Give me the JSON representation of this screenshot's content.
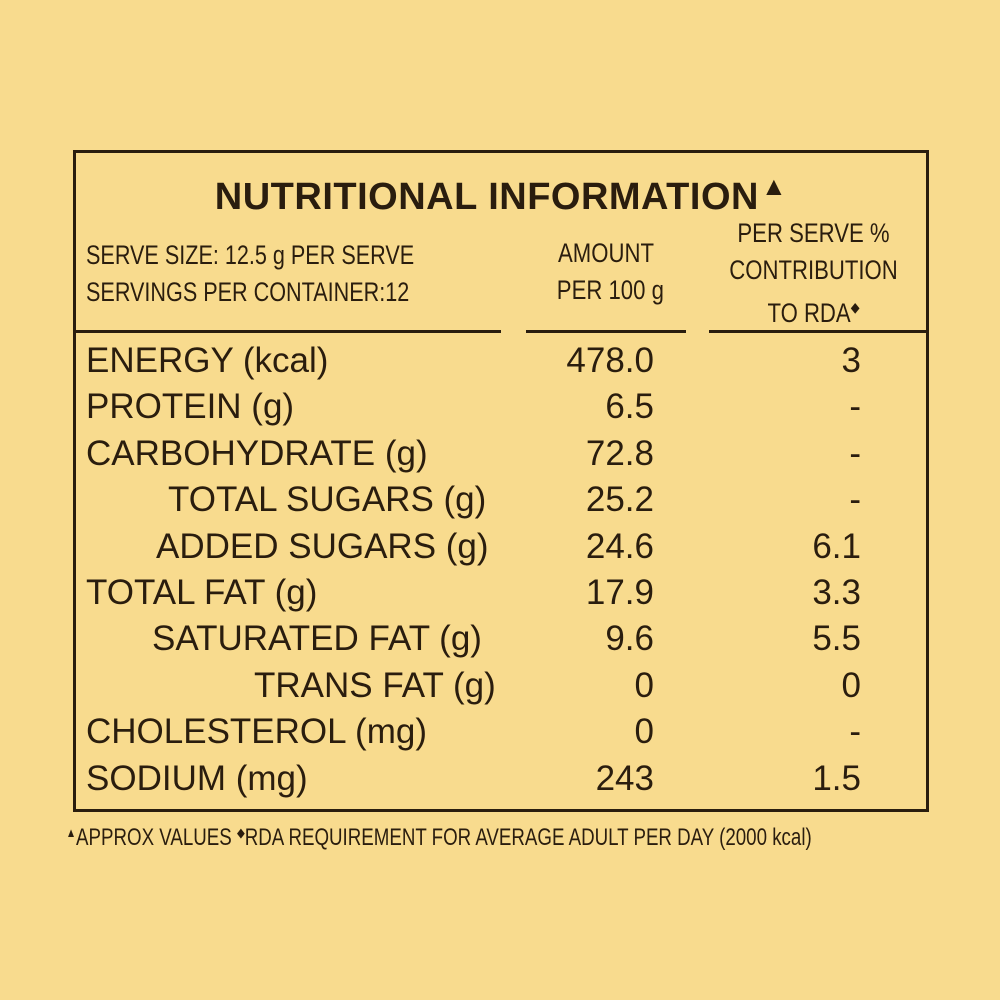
{
  "title": {
    "text": "NUTRITIONAL INFORMATION",
    "mark": "▲"
  },
  "header": {
    "serve_size": "SERVE SIZE: 12.5 g PER SERVE",
    "servings_per_container": "SERVINGS PER CONTAINER:12",
    "amount_line1": "AMOUNT",
    "amount_line2": "PER 100 g",
    "rda_line1": "PER SERVE %",
    "rda_line2": "CONTRIBUTION",
    "rda_line3": "TO RDA",
    "rda_mark": "◆"
  },
  "rows": [
    {
      "name": "ENERGY (kcal)",
      "amount": "478.0",
      "rda": "3",
      "indent": 0
    },
    {
      "name": "PROTEIN (g)",
      "amount": "6.5",
      "rda": "-",
      "indent": 0
    },
    {
      "name": "CARBOHYDRATE (g)",
      "amount": "72.8",
      "rda": "-",
      "indent": 0
    },
    {
      "name": "TOTAL SUGARS (g)",
      "amount": "25.2",
      "rda": "-",
      "indent": 1
    },
    {
      "name": "ADDED SUGARS (g)",
      "amount": "24.6",
      "rda": "6.1",
      "indent": 1
    },
    {
      "name": "TOTAL FAT (g)",
      "amount": "17.9",
      "rda": "3.3",
      "indent": 0
    },
    {
      "name": "SATURATED FAT (g)",
      "amount": "9.6",
      "rda": "5.5",
      "indent": 1
    },
    {
      "name": "TRANS FAT (g)",
      "amount": "0",
      "rda": "0",
      "indent": 1
    },
    {
      "name": "CHOLESTEROL (mg)",
      "amount": "0",
      "rda": "-",
      "indent": 0
    },
    {
      "name": "SODIUM (mg)",
      "amount": "243",
      "rda": "1.5",
      "indent": 0
    }
  ],
  "footnote": {
    "approx_mark": "▲",
    "approx_text": "APPROX  VALUES",
    "rda_mark": "◆",
    "rda_text": "RDA REQUIREMENT FOR AVERAGE ADULT PER DAY (2000 kcal)"
  }
}
